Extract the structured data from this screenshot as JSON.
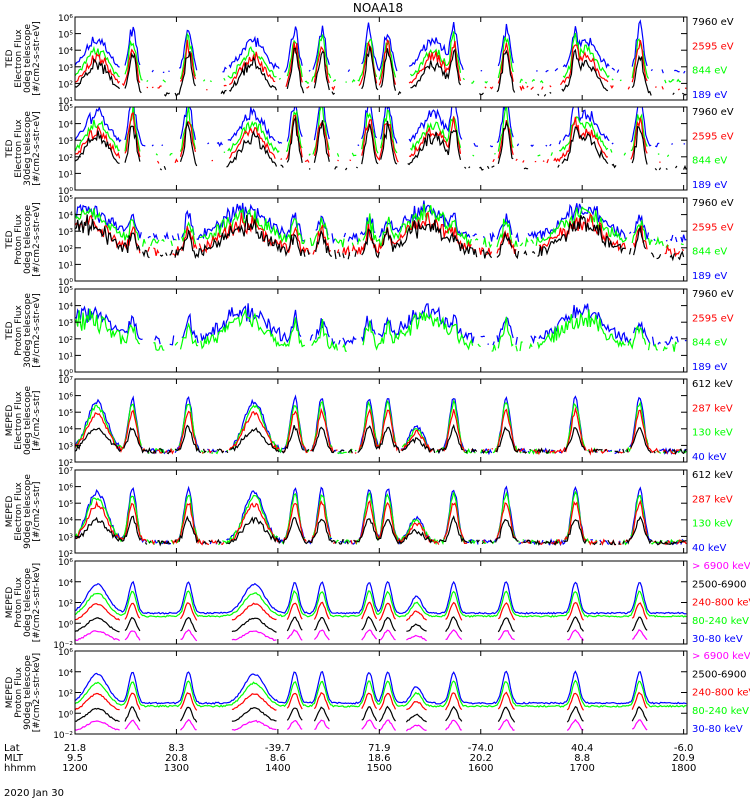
{
  "chart_data": {
    "type": "line",
    "title": "NOAA18",
    "date": "2020 Jan 30",
    "x_rows": [
      {
        "name": "Lat",
        "values": [
          "21.8",
          "8.3",
          "-39.7",
          "71.9",
          "-74.0",
          "40.4",
          "-6.0"
        ]
      },
      {
        "name": "MLT",
        "values": [
          "9.5",
          "20.8",
          "8.6",
          "18.6",
          "20.2",
          "8.8",
          "20.9"
        ]
      },
      {
        "name": "hhmm",
        "values": [
          "1200",
          "1300",
          "1400",
          "1500",
          "1600",
          "1700",
          "1800"
        ]
      }
    ],
    "x_minutes": [
      0,
      60,
      120,
      180,
      240,
      300,
      360
    ],
    "xlim": [
      0,
      362
    ],
    "series_colors": {
      "black": "#000000",
      "red": "#ff0000",
      "green": "#00ff00",
      "blue": "#0000ff",
      "magenta": "#ff00ff"
    },
    "panels": [
      {
        "ylabel": [
          "TED",
          "Electron Flux",
          "0deg telescope",
          "[#/cm2-s-str-eV]"
        ],
        "yticks": [
          "10¹",
          "10²",
          "10³",
          "10⁴",
          "10⁵",
          "10⁶"
        ],
        "ylim_exp": [
          1,
          6
        ],
        "legend": [
          {
            "label": "7960 eV",
            "color": "black"
          },
          {
            "label": "2595 eV",
            "color": "red"
          },
          {
            "label": "844 eV",
            "color": "green"
          },
          {
            "label": "189 eV",
            "color": "blue"
          }
        ],
        "kind": "ted_e"
      },
      {
        "ylabel": [
          "TED",
          "Electron Flux",
          "30deg telescope",
          "[#/cm2-s-str-eV]"
        ],
        "yticks": [
          "10⁰",
          "10¹",
          "10²",
          "10³",
          "10⁴",
          "10⁵"
        ],
        "ylim_exp": [
          0,
          5
        ],
        "legend": [
          {
            "label": "7960 eV",
            "color": "black"
          },
          {
            "label": "2595 eV",
            "color": "red"
          },
          {
            "label": "844 eV",
            "color": "green"
          },
          {
            "label": "189 eV",
            "color": "blue"
          }
        ],
        "kind": "ted_e"
      },
      {
        "ylabel": [
          "TED",
          "Proton Flux",
          "0deg telescope",
          "[#/cm2-s-str-eV]"
        ],
        "yticks": [
          "10⁰",
          "10¹",
          "10²",
          "10³",
          "10⁴",
          "10⁵"
        ],
        "ylim_exp": [
          0,
          5
        ],
        "legend": [
          {
            "label": "7960 eV",
            "color": "black"
          },
          {
            "label": "2595 eV",
            "color": "red"
          },
          {
            "label": "844 eV",
            "color": "green"
          },
          {
            "label": "189 eV",
            "color": "blue"
          }
        ],
        "kind": "ted_p"
      },
      {
        "ylabel": [
          "TED",
          "Proton Flux",
          "30deg telescope",
          "[#/cm2-s-str-eV]"
        ],
        "yticks": [
          "10⁰",
          "10¹",
          "10²",
          "10³",
          "10⁴",
          "10⁵"
        ],
        "ylim_exp": [
          0,
          5
        ],
        "legend": [
          {
            "label": "7960 eV",
            "color": "black"
          },
          {
            "label": "2595 eV",
            "color": "red"
          },
          {
            "label": "844 eV",
            "color": "green"
          },
          {
            "label": "189 eV",
            "color": "blue"
          }
        ],
        "kind": "ted_p30"
      },
      {
        "ylabel": [
          "MEPED",
          "Electron Flux",
          "0deg telescope",
          "[#/cm2-s-str]"
        ],
        "yticks": [
          "10²",
          "10³",
          "10⁴",
          "10⁵",
          "10⁶",
          "10⁷"
        ],
        "ylim_exp": [
          2,
          7
        ],
        "legend": [
          {
            "label": "612 keV",
            "color": "black"
          },
          {
            "label": "287 keV",
            "color": "red"
          },
          {
            "label": "130 keV",
            "color": "green"
          },
          {
            "label": "40 keV",
            "color": "blue"
          }
        ],
        "kind": "mep_e"
      },
      {
        "ylabel": [
          "MEPED",
          "Electron Flux",
          "90deg telescope",
          "[#/cm2-s-str]"
        ],
        "yticks": [
          "10²",
          "10³",
          "10⁴",
          "10⁵",
          "10⁶",
          "10⁷"
        ],
        "ylim_exp": [
          2,
          7
        ],
        "legend": [
          {
            "label": "612 keV",
            "color": "black"
          },
          {
            "label": "287 keV",
            "color": "red"
          },
          {
            "label": "130 keV",
            "color": "green"
          },
          {
            "label": "40 keV",
            "color": "blue"
          }
        ],
        "kind": "mep_e"
      },
      {
        "ylabel": [
          "MEPED",
          "Proton Flux",
          "0deg telescope",
          "[#/cm2-s-str-keV]"
        ],
        "yticks": [
          "10⁻²",
          "10⁰",
          "10²",
          "10⁴",
          "10⁶"
        ],
        "ylim_exp": [
          -2,
          6
        ],
        "legend": [
          {
            "label": "> 6900 keV",
            "color": "magenta"
          },
          {
            "label": "2500-6900",
            "color": "black"
          },
          {
            "label": "240-800 keV",
            "color": "red"
          },
          {
            "label": "80-240 keV",
            "color": "green"
          },
          {
            "label": "30-80 keV",
            "color": "blue"
          }
        ],
        "kind": "mep_p"
      },
      {
        "ylabel": [
          "MEPED",
          "Proton Flux",
          "90deg telescope",
          "[#/cm2-s-str-keV]"
        ],
        "yticks": [
          "10⁻²",
          "10⁰",
          "10²",
          "10⁴",
          "10⁶"
        ],
        "ylim_exp": [
          -2,
          6
        ],
        "legend": [
          {
            "label": "> 6900 keV",
            "color": "magenta"
          },
          {
            "label": "2500-6900",
            "color": "black"
          },
          {
            "label": "240-800 keV",
            "color": "red"
          },
          {
            "label": "80-240 keV",
            "color": "green"
          },
          {
            "label": "30-80 keV",
            "color": "blue"
          }
        ],
        "kind": "mep_p"
      }
    ]
  }
}
